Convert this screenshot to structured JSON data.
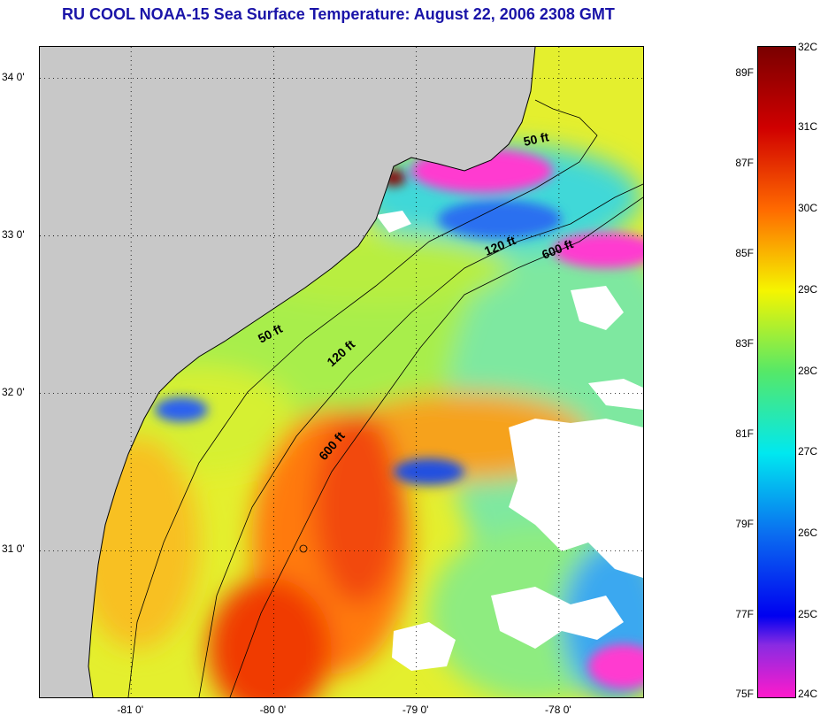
{
  "title": "RU COOL  NOAA-15  Sea Surface Temperature:  August 22, 2006 2308 GMT",
  "map": {
    "lat_range": [
      30.07,
      34.2
    ],
    "lon_range": [
      -81.64,
      -77.41
    ],
    "lat_ticks": [
      {
        "value": 34.0,
        "label": "34 0'"
      },
      {
        "value": 33.0,
        "label": "33 0'"
      },
      {
        "value": 32.0,
        "label": "32 0'"
      },
      {
        "value": 31.0,
        "label": "31 0'"
      }
    ],
    "lon_ticks": [
      {
        "value": -81.0,
        "label": "-81 0'"
      },
      {
        "value": -80.0,
        "label": "-80 0'"
      },
      {
        "value": -79.0,
        "label": "-79 0'"
      },
      {
        "value": -78.0,
        "label": "-78 0'"
      }
    ],
    "contour_labels": [
      "50 ft",
      "120 ft",
      "600 ft",
      "50 ft",
      "120 ft",
      "600 ft"
    ]
  },
  "colorbar": {
    "celsius_ticks": [
      {
        "value": 32,
        "label": "32C"
      },
      {
        "value": 31,
        "label": "31C"
      },
      {
        "value": 30,
        "label": "30C"
      },
      {
        "value": 29,
        "label": "29C"
      },
      {
        "value": 28,
        "label": "28C"
      },
      {
        "value": 27,
        "label": "27C"
      },
      {
        "value": 26,
        "label": "26C"
      },
      {
        "value": 25,
        "label": "25C"
      },
      {
        "value": 24,
        "label": "24C"
      }
    ],
    "fahrenheit_ticks": [
      {
        "value": 89,
        "label": "89F"
      },
      {
        "value": 87,
        "label": "87F"
      },
      {
        "value": 85,
        "label": "85F"
      },
      {
        "value": 83,
        "label": "83F"
      },
      {
        "value": 81,
        "label": "81F"
      },
      {
        "value": 79,
        "label": "79F"
      },
      {
        "value": 77,
        "label": "77F"
      },
      {
        "value": 75,
        "label": "75F"
      }
    ],
    "colors": {
      "c32": "#7a0000",
      "c31": "#d00000",
      "c30": "#ff6a00",
      "c29": "#f5f500",
      "c28": "#55e868",
      "c27": "#00e8f0",
      "c26": "#0a6cf0",
      "c25": "#0000f0",
      "c245": "#8a2be2",
      "c24": "#ff1acb"
    }
  },
  "colors": {
    "land": "#c8c8c8",
    "cloud": "#ffffff",
    "grid": "#000000",
    "title": "#1a14a8"
  }
}
